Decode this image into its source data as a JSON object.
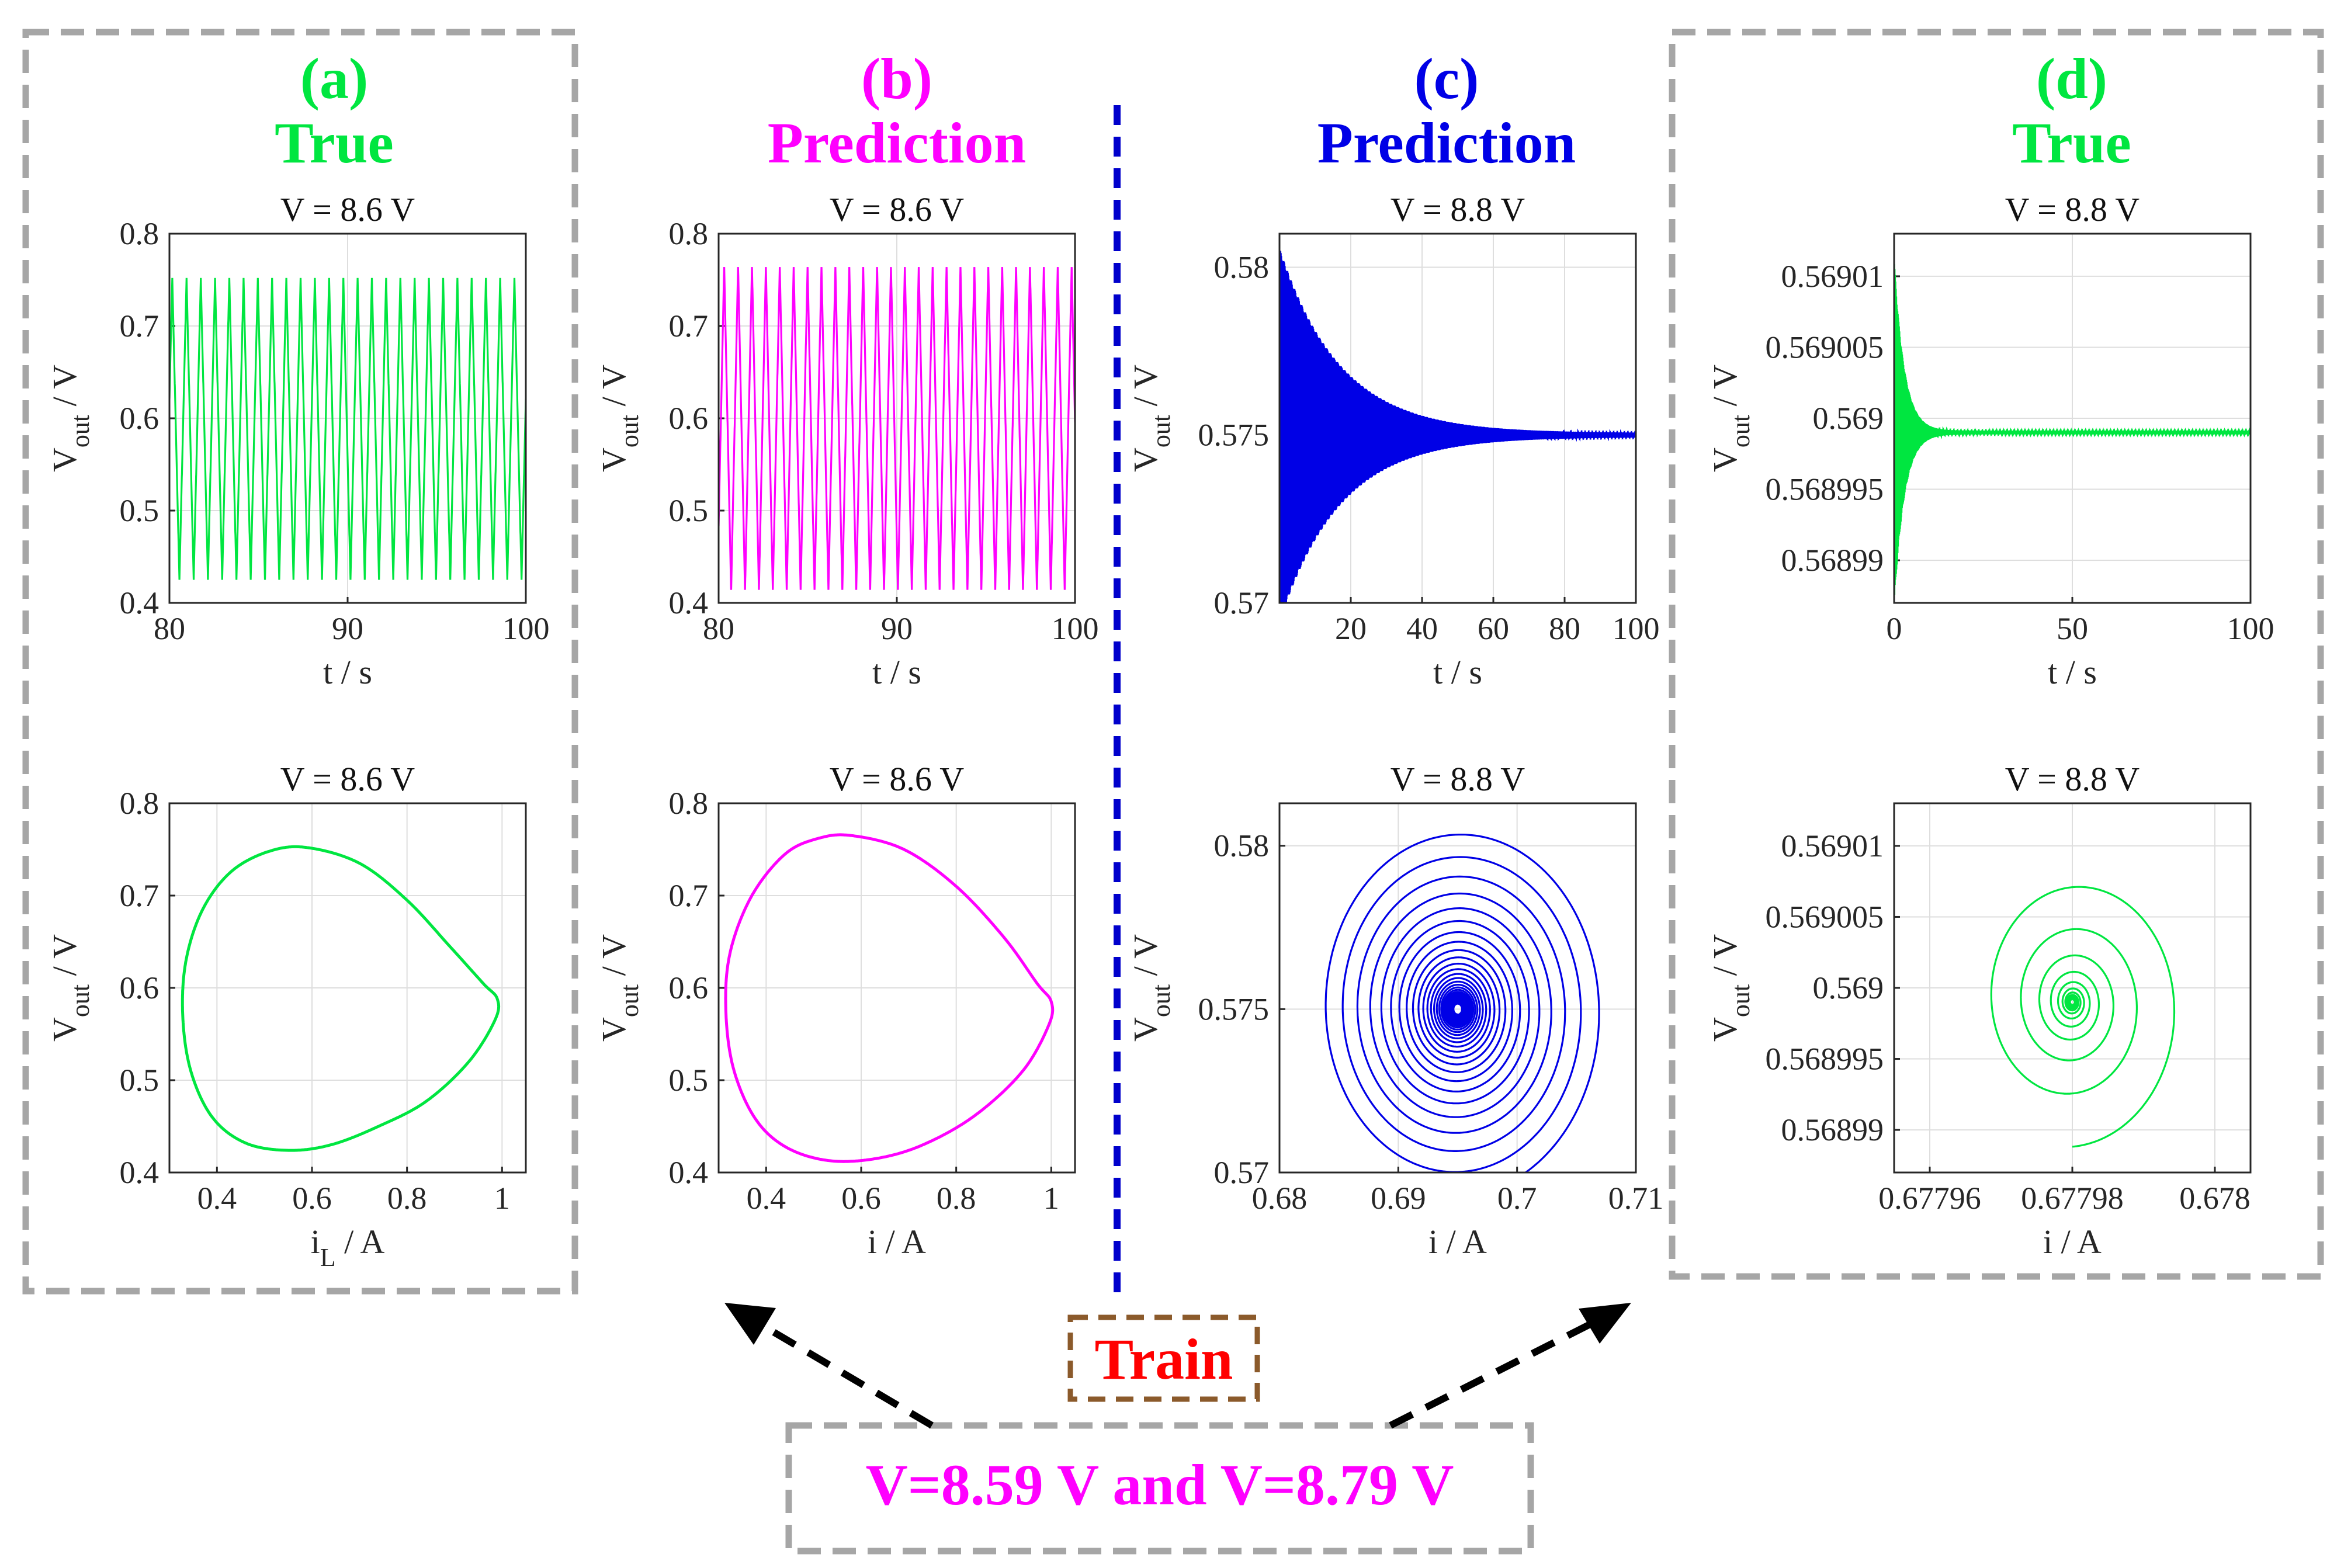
{
  "panels": {
    "a": {
      "label": "(a)",
      "name": "True",
      "color": "#00e640"
    },
    "b": {
      "label": "(b)",
      "name": "Prediction",
      "color": "#ff00ff"
    },
    "c": {
      "label": "(c)",
      "name": "Prediction",
      "color": "#0000e6"
    },
    "d": {
      "label": "(d)",
      "name": "True",
      "color": "#00e640"
    }
  },
  "annotations": {
    "train_label": "Train",
    "train_color": "#ff0000",
    "train_box_color": "#8b5a2b",
    "train_voltages": "V=8.59 V and V=8.79 V",
    "voltages_color": "#ff00ff",
    "divider_color": "#0000cc"
  },
  "chart_data": [
    {
      "id": "a-time",
      "type": "line",
      "title": "V = 8.6 V",
      "xlabel": "t / s",
      "ylabel_main": "V",
      "ylabel_sub": "out",
      "ylabel_tail": " / V",
      "xlim": [
        80,
        100
      ],
      "ylim": [
        0.4,
        0.8
      ],
      "xticks": [
        80,
        90,
        100
      ],
      "xtick_labels": [
        "80",
        "90",
        "100"
      ],
      "yticks": [
        0.4,
        0.5,
        0.6,
        0.7,
        0.8
      ],
      "ytick_labels": [
        "0.4",
        "0.5",
        "0.6",
        "0.7",
        "0.8"
      ],
      "color": "#00e640",
      "series": {
        "kind": "periodic",
        "period": 0.8,
        "phase": 0.3,
        "min": 0.425,
        "max": 0.752
      }
    },
    {
      "id": "b-time",
      "type": "line",
      "title": "V = 8.6 V",
      "xlabel": "t / s",
      "ylabel_main": "V",
      "ylabel_sub": "out",
      "ylabel_tail": " / V",
      "xlim": [
        80,
        100
      ],
      "ylim": [
        0.4,
        0.8
      ],
      "xticks": [
        80,
        90,
        100
      ],
      "xtick_labels": [
        "80",
        "90",
        "100"
      ],
      "yticks": [
        0.4,
        0.5,
        0.6,
        0.7,
        0.8
      ],
      "ytick_labels": [
        "0.4",
        "0.5",
        "0.6",
        "0.7",
        "0.8"
      ],
      "color": "#ff00ff",
      "series": {
        "kind": "periodic",
        "period": 0.78,
        "phase": 0.1,
        "min": 0.413,
        "max": 0.765
      }
    },
    {
      "id": "c-time",
      "type": "line",
      "title": "V = 8.8 V",
      "xlabel": "t / s",
      "ylabel_main": "V",
      "ylabel_sub": "out",
      "ylabel_tail": " / V",
      "xlim": [
        0,
        100
      ],
      "ylim": [
        0.57,
        0.581
      ],
      "xticks": [
        20,
        40,
        60,
        80,
        100
      ],
      "xtick_labels": [
        "20",
        "40",
        "60",
        "80",
        "100"
      ],
      "yticks": [
        0.57,
        0.575,
        0.58
      ],
      "ytick_labels": [
        "0.57",
        "0.575",
        "0.58"
      ],
      "color": "#0000e6",
      "series": {
        "kind": "decay",
        "center": 0.575,
        "amp0": 0.0055,
        "tau": 17,
        "t_end": 100
      }
    },
    {
      "id": "d-time",
      "type": "line",
      "title": "V = 8.8 V",
      "xlabel": "t / s",
      "ylabel_main": "V",
      "ylabel_sub": "out",
      "ylabel_tail": " / V",
      "xlim": [
        0,
        100
      ],
      "ylim": [
        0.568987,
        0.569013
      ],
      "xticks": [
        0,
        50,
        100
      ],
      "xtick_labels": [
        "0",
        "50",
        "100"
      ],
      "yticks": [
        0.56899,
        0.568995,
        0.569,
        0.569005,
        0.56901
      ],
      "ytick_labels": [
        "0.56899",
        "0.568995",
        "0.569",
        "0.569005",
        "0.56901"
      ],
      "color": "#00e640",
      "series": {
        "kind": "decay",
        "center": 0.568999,
        "amp0": 1.2e-05,
        "tau": 2.8,
        "t_end": 100
      }
    },
    {
      "id": "a-phase",
      "type": "line",
      "title": "V = 8.6 V",
      "xlabel_main": "i",
      "xlabel_sub": "L",
      "xlabel_tail": " / A",
      "ylabel_main": "V",
      "ylabel_sub": "out",
      "ylabel_tail": " / V",
      "xlim": [
        0.3,
        1.05
      ],
      "ylim": [
        0.4,
        0.8
      ],
      "xticks": [
        0.4,
        0.6,
        0.8,
        1
      ],
      "xtick_labels": [
        "0.4",
        "0.6",
        "0.8",
        "1"
      ],
      "yticks": [
        0.4,
        0.5,
        0.6,
        0.7,
        0.8
      ],
      "ytick_labels": [
        "0.4",
        "0.5",
        "0.6",
        "0.7",
        "0.8"
      ],
      "color": "#00e640",
      "series": {
        "kind": "closed",
        "points": [
          [
            0.59,
            0.752
          ],
          [
            0.7,
            0.735
          ],
          [
            0.8,
            0.695
          ],
          [
            0.89,
            0.645
          ],
          [
            0.96,
            0.605
          ],
          [
            0.99,
            0.588
          ],
          [
            0.985,
            0.565
          ],
          [
            0.93,
            0.52
          ],
          [
            0.84,
            0.477
          ],
          [
            0.74,
            0.45
          ],
          [
            0.64,
            0.43
          ],
          [
            0.55,
            0.424
          ],
          [
            0.46,
            0.432
          ],
          [
            0.39,
            0.46
          ],
          [
            0.345,
            0.51
          ],
          [
            0.328,
            0.57
          ],
          [
            0.335,
            0.63
          ],
          [
            0.37,
            0.685
          ],
          [
            0.43,
            0.726
          ],
          [
            0.51,
            0.748
          ]
        ]
      }
    },
    {
      "id": "b-phase",
      "type": "line",
      "title": "V = 8.6 V",
      "xlabel": "i / A",
      "ylabel_main": "V",
      "ylabel_sub": "out",
      "ylabel_tail": " / V",
      "xlim": [
        0.3,
        1.05
      ],
      "ylim": [
        0.4,
        0.8
      ],
      "xticks": [
        0.4,
        0.6,
        0.8,
        1
      ],
      "xtick_labels": [
        "0.4",
        "0.6",
        "0.8",
        "1"
      ],
      "yticks": [
        0.4,
        0.5,
        0.6,
        0.7,
        0.8
      ],
      "ytick_labels": [
        "0.4",
        "0.5",
        "0.6",
        "0.7",
        "0.8"
      ],
      "color": "#ff00ff",
      "series": {
        "kind": "closed",
        "points": [
          [
            0.58,
            0.765
          ],
          [
            0.69,
            0.75
          ],
          [
            0.8,
            0.71
          ],
          [
            0.9,
            0.655
          ],
          [
            0.97,
            0.605
          ],
          [
            1.0,
            0.585
          ],
          [
            0.995,
            0.56
          ],
          [
            0.94,
            0.51
          ],
          [
            0.84,
            0.462
          ],
          [
            0.73,
            0.43
          ],
          [
            0.63,
            0.415
          ],
          [
            0.53,
            0.413
          ],
          [
            0.44,
            0.428
          ],
          [
            0.375,
            0.46
          ],
          [
            0.33,
            0.515
          ],
          [
            0.315,
            0.58
          ],
          [
            0.325,
            0.64
          ],
          [
            0.37,
            0.7
          ],
          [
            0.44,
            0.745
          ],
          [
            0.51,
            0.762
          ]
        ]
      }
    },
    {
      "id": "c-phase",
      "type": "line",
      "title": "V = 8.8 V",
      "xlabel": "i / A",
      "ylabel_main": "V",
      "ylabel_sub": "out",
      "ylabel_tail": " / V",
      "xlim": [
        0.68,
        0.71
      ],
      "ylim": [
        0.57,
        0.5813
      ],
      "xticks": [
        0.68,
        0.69,
        0.7,
        0.71
      ],
      "xtick_labels": [
        "0.68",
        "0.69",
        "0.7",
        "0.71"
      ],
      "yticks": [
        0.57,
        0.575,
        0.58
      ],
      "ytick_labels": [
        "0.57",
        "0.575",
        "0.58"
      ],
      "color": "#0000e6",
      "series": {
        "kind": "spiral",
        "cx": 0.695,
        "cy": 0.575,
        "ax": 0.0127,
        "ay": 0.0059,
        "turns": 34,
        "decay": 1.6
      }
    },
    {
      "id": "d-phase",
      "type": "line",
      "title": "V = 8.8 V",
      "xlabel": "i / A",
      "ylabel_main": "V",
      "ylabel_sub": "out",
      "ylabel_tail": " / V",
      "xlim": [
        0.677955,
        0.678005
      ],
      "ylim": [
        0.568987,
        0.569013
      ],
      "xticks": [
        0.67796,
        0.67798,
        0.678
      ],
      "xtick_labels": [
        "0.67796",
        "0.67798",
        "0.678"
      ],
      "yticks": [
        0.56899,
        0.568995,
        0.569,
        0.569005,
        0.56901
      ],
      "ytick_labels": [
        "0.56899",
        "0.568995",
        "0.569",
        "0.569005",
        "0.56901"
      ],
      "color": "#00e640",
      "series": {
        "kind": "spiral",
        "cx": 0.67798,
        "cy": 0.568999,
        "ax": 1.65e-05,
        "ay": 1.05e-05,
        "turns": 14,
        "decay": 2.2
      }
    }
  ]
}
